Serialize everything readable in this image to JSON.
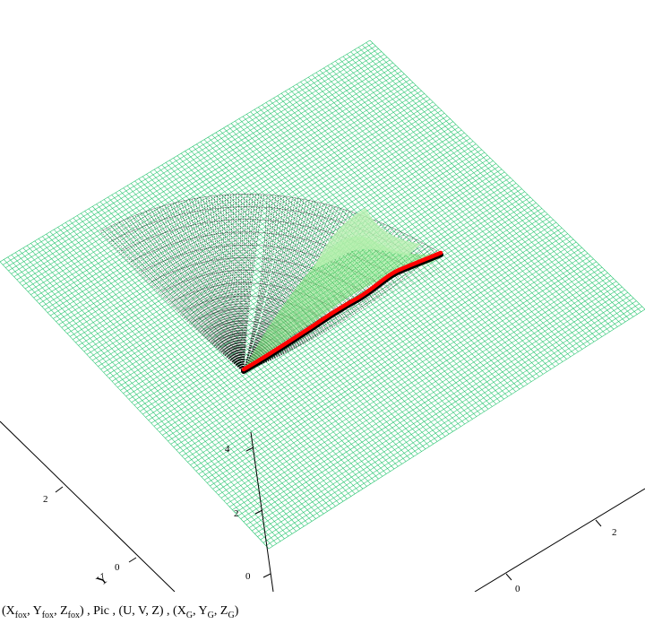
{
  "chart_data": {
    "type": "3d-surface",
    "axes": {
      "x": {
        "ticks": [
          "0",
          "2"
        ]
      },
      "y": {
        "ticks": [
          "0",
          "2"
        ],
        "label": "Y"
      },
      "z": {
        "ticks": [
          "0",
          "2",
          "4"
        ]
      }
    },
    "series": [
      {
        "color": "#1fc36a",
        "kind": "wireframe-plane"
      },
      {
        "color": "#000000",
        "kind": "fan-wireframe"
      },
      {
        "color": "#7de87a",
        "kind": "shaded-surface"
      },
      {
        "color": "#ff0000",
        "kind": "thick-curve"
      }
    ],
    "caption": {
      "parts": [
        "(X",
        "fox",
        ", Y",
        "fox",
        ", Z",
        "fox",
        ") , Pic , (U, V, Z) , (X",
        "G",
        ", Y",
        "G",
        ", Z",
        "G",
        ")"
      ]
    }
  }
}
